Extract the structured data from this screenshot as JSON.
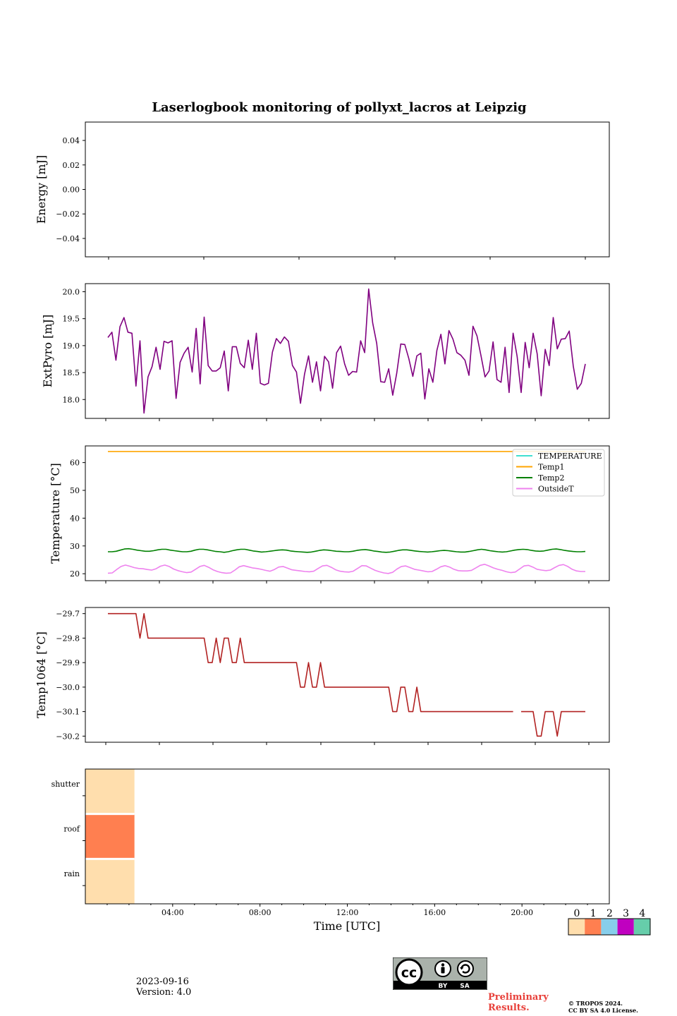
{
  "title": "Laserlogbook monitoring of pollyxt_lacros at Leipzig",
  "xlabel": "Time [UTC]",
  "footer": {
    "date": "2023-09-16",
    "version": "Version: 4.0",
    "preliminary": "Preliminary\nResults.",
    "copyright_line1": "© TROPOS 2024.",
    "copyright_line2": "CC BY SA 4.0 License."
  },
  "license_badge": {
    "label_by": "BY",
    "label_sa": "SA"
  },
  "chart_data": [
    {
      "type": "line",
      "ylabel": "Energy [mJ]",
      "ylim": [
        -0.055,
        0.055
      ],
      "yticks": [
        -0.04,
        -0.02,
        0.0,
        0.02,
        0.04
      ],
      "ytick_labels": [
        "−0.04",
        "−0.02",
        "0.00",
        "0.02",
        "0.04"
      ],
      "series": []
    },
    {
      "type": "line",
      "ylabel": "ExtPyro [mJ]",
      "ylim": [
        17.65,
        20.15
      ],
      "yticks": [
        18.0,
        18.5,
        19.0,
        19.5,
        20.0
      ],
      "ytick_labels": [
        "18.0",
        "18.5",
        "19.0",
        "19.5",
        "20.0"
      ],
      "series": [
        {
          "color": "#800080",
          "values": [
            19.15,
            19.25,
            18.73,
            19.35,
            19.52,
            19.25,
            19.23,
            18.25,
            19.09,
            17.75,
            18.42,
            18.61,
            18.97,
            18.56,
            19.08,
            19.05,
            19.09,
            18.02,
            18.69,
            18.86,
            18.97,
            18.51,
            19.32,
            18.29,
            19.53,
            18.63,
            18.53,
            18.53,
            18.59,
            18.9,
            18.16,
            18.98,
            18.98,
            18.67,
            18.59,
            19.1,
            18.56,
            19.23,
            18.3,
            18.27,
            18.3,
            18.88,
            19.13,
            19.04,
            19.16,
            19.08,
            18.63,
            18.51,
            17.93,
            18.47,
            18.81,
            18.32,
            18.7,
            18.16,
            18.8,
            18.7,
            18.21,
            18.87,
            18.99,
            18.66,
            18.45,
            18.52,
            18.51,
            19.09,
            18.87,
            20.05,
            19.42,
            19.04,
            18.33,
            18.32,
            18.57,
            18.08,
            18.49,
            19.03,
            19.02,
            18.76,
            18.43,
            18.81,
            18.86,
            18.01,
            18.57,
            18.32,
            18.91,
            19.21,
            18.66,
            19.28,
            19.12,
            18.87,
            18.82,
            18.73,
            18.45,
            19.36,
            19.18,
            18.81,
            18.42,
            18.53,
            19.07,
            18.37,
            18.32,
            18.97,
            18.13,
            19.23,
            18.8,
            18.13,
            19.06,
            18.59,
            19.23,
            18.85,
            18.07,
            18.93,
            18.63,
            19.52,
            18.94,
            19.12,
            19.13,
            19.27,
            18.62,
            18.19,
            18.3,
            18.66
          ]
        }
      ]
    },
    {
      "type": "line",
      "ylabel": "Temperature [°C]",
      "ylim": [
        17.5,
        66
      ],
      "yticks": [
        20,
        30,
        40,
        50,
        60
      ],
      "ytick_labels": [
        "20",
        "30",
        "40",
        "50",
        "60"
      ],
      "legend": [
        "TEMPERATURE",
        "Temp1",
        "Temp2",
        "OutsideT"
      ],
      "legend_position": "upper-right",
      "series": [
        {
          "name": "TEMPERATURE",
          "color": "#40e0d0",
          "values": []
        },
        {
          "name": "Temp1",
          "color": "#ffa500",
          "values": [
            64,
            64,
            64,
            64,
            64,
            64,
            64,
            64,
            64,
            64,
            64,
            64,
            64,
            64,
            64,
            64,
            64,
            64,
            64,
            64,
            64,
            64,
            64,
            64,
            64,
            64,
            64,
            64,
            64,
            64,
            64,
            64,
            64,
            64,
            64,
            64,
            64,
            64,
            64,
            64,
            64,
            64,
            64,
            64,
            64,
            64,
            64,
            64,
            64,
            64,
            64,
            64,
            64,
            64,
            64,
            64,
            64,
            64,
            64,
            64,
            64,
            64,
            64,
            64,
            64,
            64,
            64,
            64,
            64,
            64,
            64,
            64,
            64,
            64,
            64,
            64,
            64,
            64,
            64,
            64,
            64,
            64,
            64,
            64,
            64,
            64,
            64,
            64,
            64,
            64,
            64,
            64,
            64,
            64,
            64,
            64,
            64,
            64,
            64,
            64,
            64,
            64,
            64,
            64,
            64,
            64,
            64,
            64,
            64,
            64,
            64,
            64,
            64,
            64,
            64,
            64,
            64,
            64,
            64,
            64
          ]
        },
        {
          "name": "Temp2",
          "color": "#008000",
          "values": [
            27.9,
            27.9,
            28.1,
            28.5,
            28.9,
            29.0,
            28.8,
            28.5,
            28.3,
            28.1,
            28.1,
            28.3,
            28.6,
            28.8,
            28.8,
            28.5,
            28.3,
            28.1,
            27.9,
            27.9,
            28.1,
            28.5,
            28.8,
            28.8,
            28.6,
            28.3,
            28.0,
            27.9,
            27.7,
            27.9,
            28.3,
            28.6,
            28.8,
            28.8,
            28.5,
            28.2,
            28.0,
            27.8,
            27.9,
            28.1,
            28.3,
            28.5,
            28.6,
            28.5,
            28.2,
            28.0,
            27.9,
            27.8,
            27.7,
            27.8,
            28.1,
            28.4,
            28.6,
            28.5,
            28.3,
            28.1,
            28.0,
            27.9,
            27.9,
            28.1,
            28.4,
            28.6,
            28.7,
            28.5,
            28.2,
            28.0,
            27.8,
            27.7,
            27.8,
            28.1,
            28.4,
            28.6,
            28.6,
            28.4,
            28.2,
            28.0,
            27.9,
            27.8,
            27.9,
            28.1,
            28.3,
            28.4,
            28.3,
            28.1,
            27.9,
            27.8,
            27.8,
            28.0,
            28.3,
            28.6,
            28.8,
            28.6,
            28.3,
            28.1,
            27.9,
            27.8,
            27.9,
            28.2,
            28.5,
            28.7,
            28.8,
            28.7,
            28.4,
            28.2,
            28.1,
            28.2,
            28.5,
            28.8,
            28.9,
            28.7,
            28.4,
            28.2,
            28.0,
            27.9,
            27.9,
            28.0
          ]
        },
        {
          "name": "OutsideT",
          "color": "#ee82ee",
          "values": [
            20.2,
            20.3,
            21.5,
            22.6,
            23.1,
            22.7,
            22.2,
            21.9,
            21.8,
            21.5,
            21.3,
            21.8,
            22.7,
            23.1,
            22.6,
            21.7,
            21.1,
            20.7,
            20.4,
            20.6,
            21.6,
            22.6,
            23.0,
            22.3,
            21.4,
            20.8,
            20.4,
            20.2,
            20.3,
            21.3,
            22.5,
            22.9,
            22.5,
            22.1,
            21.9,
            21.6,
            21.2,
            20.9,
            21.5,
            22.4,
            22.6,
            22.0,
            21.4,
            21.2,
            21.0,
            20.8,
            20.7,
            20.9,
            21.9,
            22.8,
            23.0,
            22.3,
            21.4,
            20.9,
            20.7,
            20.6,
            20.9,
            21.9,
            22.9,
            22.8,
            22.0,
            21.2,
            20.7,
            20.3,
            20.1,
            20.5,
            21.7,
            22.6,
            22.8,
            22.2,
            21.6,
            21.3,
            21.0,
            20.7,
            20.8,
            21.6,
            22.5,
            22.9,
            22.4,
            21.6,
            21.1,
            21.0,
            21.0,
            21.2,
            22.1,
            23.0,
            23.4,
            22.8,
            22.1,
            21.6,
            21.2,
            20.7,
            20.4,
            20.6,
            21.7,
            22.8,
            23.0,
            22.4,
            21.6,
            21.3,
            21.1,
            21.3,
            22.2,
            23.0,
            23.3,
            22.6,
            21.6,
            21.0,
            20.8,
            20.8
          ]
        }
      ]
    },
    {
      "type": "line",
      "ylabel": "Temp1064 [°C]",
      "ylim": [
        -30.225,
        -29.675
      ],
      "yticks": [
        -30.2,
        -30.1,
        -30.0,
        -29.9,
        -29.8,
        -29.7
      ],
      "ytick_labels": [
        "−30.2",
        "−30.1",
        "−30.0",
        "−29.9",
        "−29.8",
        "−29.7"
      ],
      "series": [
        {
          "color": "#b22222",
          "values": [
            -29.7,
            -29.7,
            -29.7,
            -29.7,
            -29.7,
            -29.7,
            -29.7,
            -29.7,
            -29.8,
            -29.7,
            -29.8,
            -29.8,
            -29.8,
            -29.8,
            -29.8,
            -29.8,
            -29.8,
            -29.8,
            -29.8,
            -29.8,
            -29.8,
            -29.8,
            -29.8,
            -29.8,
            -29.8,
            -29.9,
            -29.9,
            -29.8,
            -29.9,
            -29.8,
            -29.8,
            -29.9,
            -29.9,
            -29.8,
            -29.9,
            -29.9,
            -29.9,
            -29.9,
            -29.9,
            -29.9,
            -29.9,
            -29.9,
            -29.9,
            -29.9,
            -29.9,
            -29.9,
            -29.9,
            -29.9,
            -30.0,
            -30.0,
            -29.9,
            -30.0,
            -30.0,
            -29.9,
            -30.0,
            -30.0,
            -30.0,
            -30.0,
            -30.0,
            -30.0,
            -30.0,
            -30.0,
            -30.0,
            -30.0,
            -30.0,
            -30.0,
            -30.0,
            -30.0,
            -30.0,
            -30.0,
            -30.0,
            -30.1,
            -30.1,
            -30.0,
            -30.0,
            -30.1,
            -30.1,
            -30.0,
            -30.1,
            -30.1,
            -30.1,
            -30.1,
            -30.1,
            -30.1,
            -30.1,
            -30.1,
            -30.1,
            -30.1,
            -30.1,
            -30.1,
            -30.1,
            -30.1,
            -30.1,
            -30.1,
            -30.1,
            -30.1,
            -30.1,
            -30.1,
            -30.1,
            -30.1,
            -30.1,
            -30.1,
            null,
            -30.1,
            -30.1,
            -30.1,
            -30.1,
            -30.2,
            -30.2,
            -30.1,
            -30.1,
            -30.1,
            -30.2,
            -30.1,
            -30.1,
            -30.1,
            -30.1,
            -30.1,
            -30.1,
            -30.1
          ]
        }
      ]
    },
    {
      "type": "heatmap",
      "yticks": [
        "shutter",
        "roof",
        "rain"
      ],
      "xlim": [
        0,
        24
      ],
      "xtick_labels": [
        "04:00",
        "08:00",
        "12:00",
        "16:00",
        "20:00"
      ],
      "xticks": [
        4,
        8,
        12,
        16,
        20
      ],
      "blocks": [
        {
          "row": "shutter",
          "start": 0,
          "end": 2.25,
          "value": 0
        },
        {
          "row": "roof",
          "start": 0,
          "end": 2.25,
          "value": 1
        },
        {
          "row": "rain",
          "start": 0,
          "end": 2.25,
          "value": 0
        }
      ],
      "colorbar": {
        "labels": [
          "0",
          "1",
          "2",
          "3",
          "4"
        ],
        "colors": [
          "#ffdead",
          "#ff7f50",
          "#87ceeb",
          "#c000c0",
          "#66cdaa"
        ]
      }
    }
  ]
}
